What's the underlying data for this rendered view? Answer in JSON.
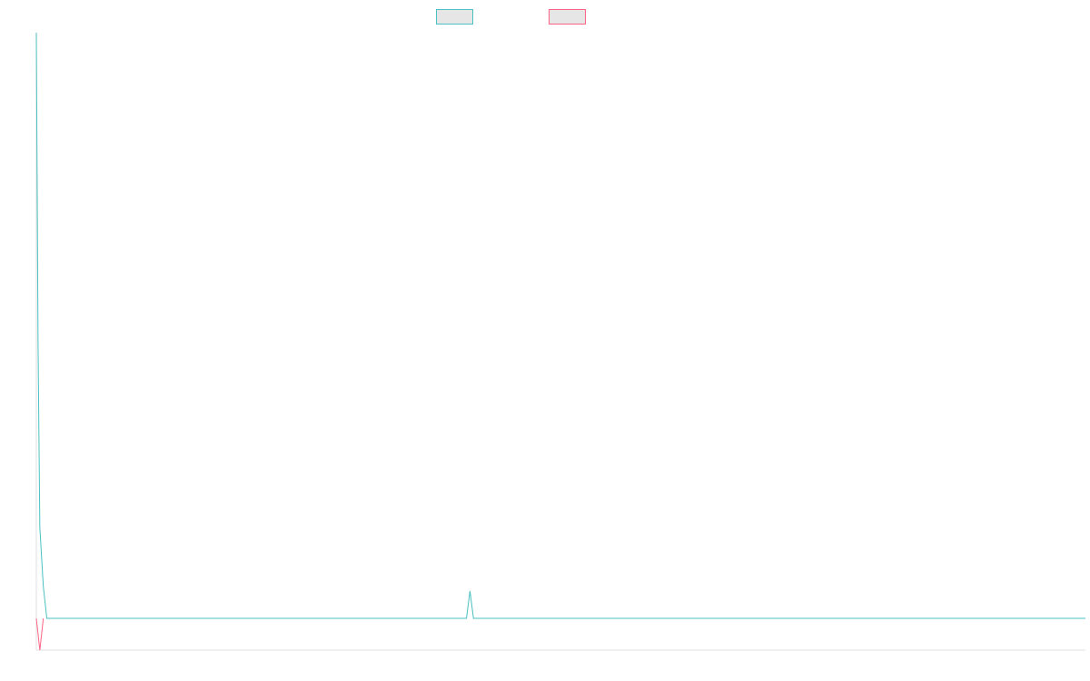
{
  "chart_data": {
    "type": "line",
    "title": "",
    "xlabel": "",
    "ylabel": "",
    "grid": false,
    "legend_position": "top-center",
    "ylim": [
      -35,
      645
    ],
    "series": [
      {
        "color": "#4bc0c0",
        "fill": "#e6e6e6",
        "points": [
          [
            0.0,
            645.0
          ],
          [
            0.5,
            300.0
          ],
          [
            1.0,
            100.0
          ],
          [
            2.0,
            35.0
          ],
          [
            3.0,
            0.0
          ],
          [
            50.0,
            0.0
          ],
          [
            110.0,
            0.0
          ],
          [
            123.0,
            0.0
          ],
          [
            124.0,
            30.0
          ],
          [
            125.0,
            0.0
          ],
          [
            300.0,
            0.0
          ]
        ]
      },
      {
        "color": "#ff6384",
        "fill": "#e6e6e6",
        "points": [
          [
            0.0,
            0.0
          ],
          [
            1.0,
            -35.0
          ],
          [
            2.0,
            0.0
          ]
        ]
      }
    ],
    "x_domain": [
      0,
      300
    ]
  }
}
